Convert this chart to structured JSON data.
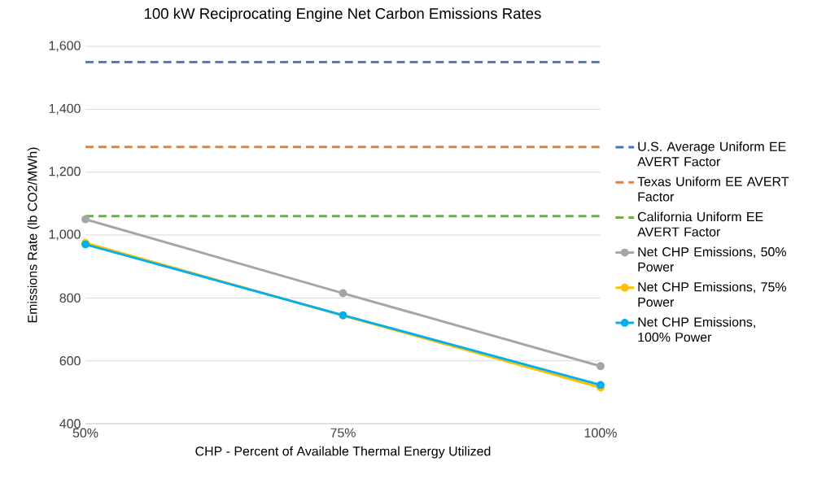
{
  "chart_data": {
    "type": "line",
    "title": "100 kW Reciprocating Engine Net Carbon Emissions Rates",
    "xlabel": "CHP -  Percent of Available Thermal Energy Utilized",
    "ylabel": "Emissions Rate (lb CO2/MWh)",
    "categories": [
      "50%",
      "75%",
      "100%"
    ],
    "ylim": [
      400,
      1600
    ],
    "yticks": [
      {
        "value": 400,
        "label": "400"
      },
      {
        "value": 600,
        "label": "600"
      },
      {
        "value": 800,
        "label": "800"
      },
      {
        "value": 1000,
        "label": "1,000"
      },
      {
        "value": 1200,
        "label": "1,200"
      },
      {
        "value": 1400,
        "label": "1,400"
      },
      {
        "value": 1600,
        "label": "1,600"
      }
    ],
    "grid": "y",
    "legend": "right",
    "series": [
      {
        "name": "U.S. Average Uniform EE AVERT Factor",
        "color": "#4472c4",
        "values": [
          1550,
          1550,
          1550
        ],
        "line_style": "dashed",
        "marker": "none"
      },
      {
        "name": "Texas Uniform EE AVERT Factor",
        "color": "#ed7d31",
        "values": [
          1280,
          1280,
          1280
        ],
        "line_style": "dashed",
        "marker": "none"
      },
      {
        "name": "California Uniform EE AVERT Factor",
        "color": "#70ad47",
        "values": [
          1060,
          1060,
          1060
        ],
        "line_style": "dashed",
        "marker": "none"
      },
      {
        "name": "Net CHP Emissions, 50% Power",
        "color": "#a5a5a5",
        "values": [
          1050,
          815,
          583
        ],
        "line_style": "solid",
        "marker": "circle"
      },
      {
        "name": "Net CHP Emissions, 75% Power",
        "color": "#ffc000",
        "values": [
          975,
          744,
          515
        ],
        "line_style": "solid",
        "marker": "circle"
      },
      {
        "name": "Net CHP Emissions, 100% Power",
        "color": "#00b0f0",
        "values": [
          970,
          745,
          523
        ],
        "line_style": "solid",
        "marker": "circle"
      }
    ]
  }
}
